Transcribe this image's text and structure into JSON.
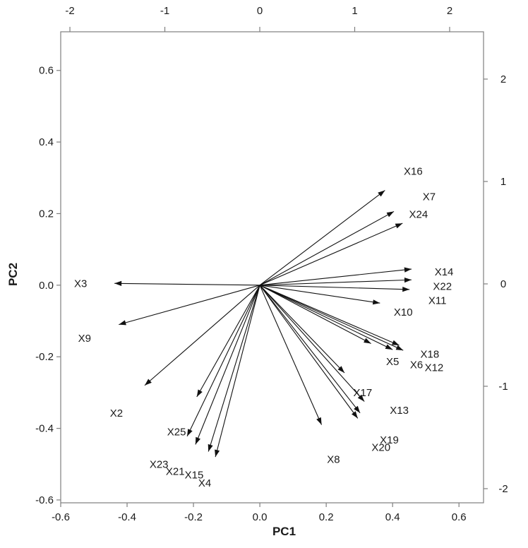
{
  "chart_data": {
    "type": "scatter",
    "subtype": "pca-biplot-loadings",
    "title": "",
    "xlabel": "PC1",
    "ylabel": "PC2",
    "grid": false,
    "legend": "none",
    "colors": {
      "frame": "#7f7f7f",
      "tick": "#7f7f7f",
      "text": "#1a1a1a",
      "arrow": "#111111",
      "background": "#ffffff"
    },
    "axes": {
      "bottom": {
        "label": "PC1",
        "ticks": [
          "-0.6",
          "-0.4",
          "-0.2",
          "0.0",
          "0.2",
          "0.4",
          "0.6"
        ],
        "range": [
          -0.6,
          0.674
        ]
      },
      "left": {
        "label": "PC2",
        "ticks": [
          "0.6",
          "0.4",
          "0.2",
          "0.0",
          "-0.2",
          "-0.4",
          "-0.6"
        ],
        "range": [
          -0.608,
          0.708
        ]
      },
      "top": {
        "label": "",
        "ticks": [
          "-2",
          "-1",
          "0",
          "1",
          "2"
        ],
        "range": [
          -2.097,
          2.357
        ]
      },
      "right": {
        "label": "",
        "ticks": [
          "2",
          "1",
          "0",
          "-1",
          "-2"
        ],
        "range": [
          -2.138,
          2.462
        ]
      }
    },
    "origin": {
      "x": 0,
      "y": 0
    },
    "arrows": [
      {
        "name": "X3",
        "x": -0.438,
        "y": 0.005,
        "lx": -0.54,
        "ly": 0.005
      },
      {
        "name": "X9",
        "x": -0.425,
        "y": -0.11,
        "lx": -0.528,
        "ly": -0.148
      },
      {
        "name": "X2",
        "x": -0.347,
        "y": -0.28,
        "lx": -0.432,
        "ly": -0.357
      },
      {
        "name": "X25",
        "x": -0.19,
        "y": -0.312,
        "lx": -0.251,
        "ly": -0.41
      },
      {
        "name": "X23",
        "x": -0.219,
        "y": -0.422,
        "lx": -0.304,
        "ly": -0.5
      },
      {
        "name": "X21",
        "x": -0.194,
        "y": -0.445,
        "lx": -0.255,
        "ly": -0.52
      },
      {
        "name": "X15",
        "x": -0.155,
        "y": -0.465,
        "lx": -0.198,
        "ly": -0.53
      },
      {
        "name": "X4",
        "x": -0.134,
        "y": -0.48,
        "lx": -0.166,
        "ly": -0.553
      },
      {
        "name": "X8",
        "x": 0.186,
        "y": -0.39,
        "lx": 0.222,
        "ly": -0.487
      },
      {
        "name": "X20",
        "x": 0.295,
        "y": -0.372,
        "lx": 0.365,
        "ly": -0.453
      },
      {
        "name": "X19",
        "x": 0.302,
        "y": -0.357,
        "lx": 0.39,
        "ly": -0.432
      },
      {
        "name": "X13",
        "x": 0.315,
        "y": -0.325,
        "lx": 0.42,
        "ly": -0.35
      },
      {
        "name": "X17",
        "x": 0.255,
        "y": -0.245,
        "lx": 0.31,
        "ly": -0.3
      },
      {
        "name": "X5",
        "x": 0.335,
        "y": -0.163,
        "lx": 0.4,
        "ly": -0.213
      },
      {
        "name": "X6",
        "x": 0.4,
        "y": -0.18,
        "lx": 0.472,
        "ly": -0.222
      },
      {
        "name": "X18",
        "x": 0.42,
        "y": -0.168,
        "lx": 0.512,
        "ly": -0.193
      },
      {
        "name": "X12",
        "x": 0.432,
        "y": -0.182,
        "lx": 0.525,
        "ly": -0.23
      },
      {
        "name": "X10",
        "x": 0.362,
        "y": -0.05,
        "lx": 0.432,
        "ly": -0.075
      },
      {
        "name": "X11",
        "x": 0.451,
        "y": -0.012,
        "lx": 0.535,
        "ly": -0.043
      },
      {
        "name": "X22",
        "x": 0.457,
        "y": 0.015,
        "lx": 0.55,
        "ly": -0.003
      },
      {
        "name": "X14",
        "x": 0.457,
        "y": 0.045,
        "lx": 0.555,
        "ly": 0.037
      },
      {
        "name": "X24",
        "x": 0.43,
        "y": 0.173,
        "lx": 0.478,
        "ly": 0.198
      },
      {
        "name": "X7",
        "x": 0.404,
        "y": 0.206,
        "lx": 0.51,
        "ly": 0.247
      },
      {
        "name": "X16",
        "x": 0.377,
        "y": 0.265,
        "lx": 0.462,
        "ly": 0.318
      }
    ]
  }
}
